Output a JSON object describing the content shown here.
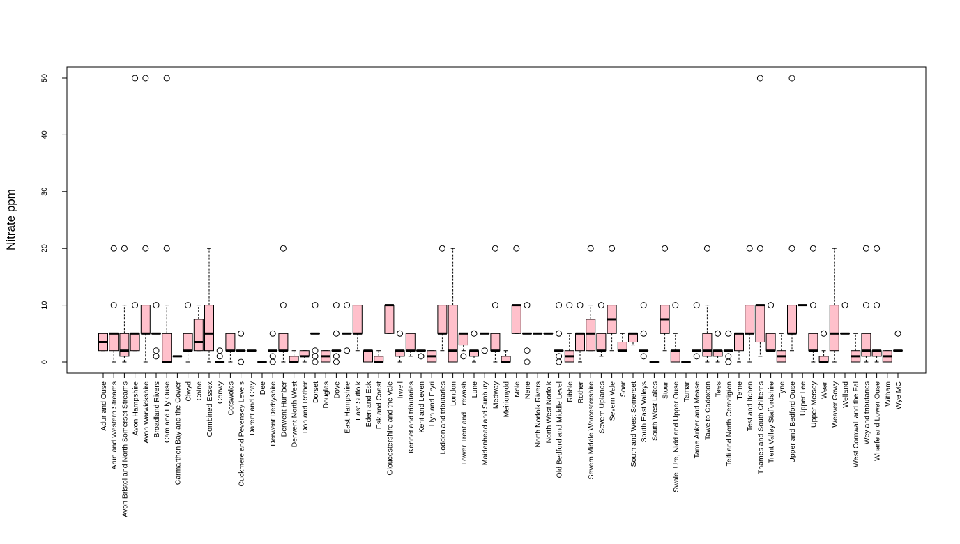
{
  "chart_data": {
    "type": "box",
    "title": "",
    "xlabel": "",
    "ylabel": "Nitrate ppm",
    "ylim": [
      -2,
      52
    ],
    "yticks": [
      0,
      10,
      20,
      30,
      40,
      50
    ],
    "colors": {
      "box_fill": "#ffc0cb",
      "stroke": "#000000"
    },
    "categories": [
      "Adur and Ouse",
      "Arun and Western Streams",
      "Avon Bristol and North Somerset Streams",
      "Avon Hampshire",
      "Avon Warwickshire",
      "Broadland Rivers",
      "Cam and Ely Ouse",
      "Carmarthen Bay and the Gower",
      "Clwyd",
      "Colne",
      "Combined Essex",
      "Conwy",
      "Cotswolds",
      "Cuckmere and Pevensey Levels",
      "Darent and Cray",
      "Dee",
      "Derwent Derbyshire",
      "Derwent Humber",
      "Derwent North West",
      "Don and Rother",
      "Dorset",
      "Douglas",
      "Dove",
      "East Hampshire",
      "East Suffolk",
      "Eden and Esk",
      "Esk and Coast",
      "Gloucestershire and the Vale",
      "Irwell",
      "Kennet and tributaries",
      "Kent and Leven",
      "Llyn and Eryri",
      "Loddon and tributaries",
      "London",
      "Lower Trent and Erewash",
      "Lune",
      "Maidenhead and Sunbury",
      "Medway",
      "Meirionydd",
      "Mole",
      "Nene",
      "North Norfolk Rivers",
      "North West Norfolk",
      "Old Bedford and Middle Level",
      "Ribble",
      "Rother",
      "Severn Middle Worcestershire",
      "Severn Uplands",
      "Severn Vale",
      "Soar",
      "South and West Somerset",
      "South East Valleys",
      "South West Lakes",
      "Stour",
      "Swale, Ure, Nidd and Upper Ouse",
      "Tamar",
      "Tame Anker and Mease",
      "Tawe to Cadoxton",
      "Tees",
      "Teifi and North Ceredigion",
      "Teme",
      "Test and Itchen",
      "Thames and South Chilterns",
      "Trent Valley Staffordshire",
      "Tyne",
      "Upper and Bedford Ouse",
      "Upper Lee",
      "Upper Mersey",
      "Wear",
      "Weaver Gowy",
      "Welland",
      "West Cornwall and the Fal",
      "Wey and tributaries",
      "Wharfe and Lower Ouse",
      "Witham",
      "Wye MC"
    ],
    "boxes": [
      {
        "min": 2,
        "q1": 2,
        "median": 3.5,
        "q3": 5,
        "max": 5,
        "outliers": []
      },
      {
        "min": 0,
        "q1": 2,
        "median": 5,
        "q3": 5,
        "max": 5,
        "outliers": [
          10,
          20
        ]
      },
      {
        "min": 0,
        "q1": 1,
        "median": 2,
        "q3": 5,
        "max": 10,
        "outliers": [
          20
        ]
      },
      {
        "min": 2,
        "q1": 2,
        "median": 5,
        "q3": 5,
        "max": 5,
        "outliers": [
          10,
          50
        ]
      },
      {
        "min": 0,
        "q1": 5,
        "median": 5,
        "q3": 10,
        "max": 10,
        "outliers": [
          20,
          50
        ]
      },
      {
        "min": 5,
        "q1": 5,
        "median": 5,
        "q3": 5,
        "max": 5,
        "outliers": [
          1,
          2,
          10
        ]
      },
      {
        "min": 0,
        "q1": 0,
        "median": 0,
        "q3": 5,
        "max": 10,
        "outliers": [
          20,
          50
        ]
      },
      {
        "min": 1,
        "q1": 1,
        "median": 1,
        "q3": 1,
        "max": 1,
        "outliers": []
      },
      {
        "min": 0,
        "q1": 2,
        "median": 2,
        "q3": 5,
        "max": 5,
        "outliers": [
          10
        ]
      },
      {
        "min": 2,
        "q1": 2,
        "median": 3.5,
        "q3": 7.5,
        "max": 10,
        "outliers": []
      },
      {
        "min": 0,
        "q1": 2,
        "median": 5,
        "q3": 10,
        "max": 20,
        "outliers": []
      },
      {
        "min": 0,
        "q1": 0,
        "median": 0,
        "q3": 0,
        "max": 0,
        "outliers": [
          1,
          2
        ]
      },
      {
        "min": 0,
        "q1": 2,
        "median": 2,
        "q3": 5,
        "max": 5,
        "outliers": []
      },
      {
        "min": 2,
        "q1": 2,
        "median": 2,
        "q3": 2,
        "max": 2,
        "outliers": [
          0,
          5
        ]
      },
      {
        "min": 2,
        "q1": 2,
        "median": 2,
        "q3": 2,
        "max": 2,
        "outliers": []
      },
      {
        "min": 0,
        "q1": 0,
        "median": 0,
        "q3": 0,
        "max": 0,
        "outliers": []
      },
      {
        "min": 2,
        "q1": 2,
        "median": 2,
        "q3": 2,
        "max": 2,
        "outliers": [
          0,
          1,
          5
        ]
      },
      {
        "min": 0,
        "q1": 2,
        "median": 2,
        "q3": 5,
        "max": 5,
        "outliers": [
          10,
          20
        ]
      },
      {
        "min": 0,
        "q1": 0,
        "median": 0,
        "q3": 1,
        "max": 2,
        "outliers": []
      },
      {
        "min": 0,
        "q1": 1,
        "median": 1,
        "q3": 2,
        "max": 2,
        "outliers": []
      },
      {
        "min": 5,
        "q1": 5,
        "median": 5,
        "q3": 5,
        "max": 5,
        "outliers": [
          0,
          1,
          2,
          10
        ]
      },
      {
        "min": 0,
        "q1": 0,
        "median": 1,
        "q3": 2,
        "max": 2,
        "outliers": []
      },
      {
        "min": 2,
        "q1": 2,
        "median": 2,
        "q3": 2,
        "max": 2,
        "outliers": [
          0,
          1,
          5,
          10
        ]
      },
      {
        "min": 5,
        "q1": 5,
        "median": 5,
        "q3": 5,
        "max": 5,
        "outliers": [
          2,
          10
        ]
      },
      {
        "min": 2,
        "q1": 5,
        "median": 5,
        "q3": 10,
        "max": 10,
        "outliers": []
      },
      {
        "min": 0,
        "q1": 0,
        "median": 2,
        "q3": 2,
        "max": 2,
        "outliers": []
      },
      {
        "min": 0,
        "q1": 0,
        "median": 0,
        "q3": 1,
        "max": 2,
        "outliers": []
      },
      {
        "min": 5,
        "q1": 5,
        "median": 10,
        "q3": 10,
        "max": 10,
        "outliers": []
      },
      {
        "min": 0,
        "q1": 1,
        "median": 2,
        "q3": 2,
        "max": 2,
        "outliers": [
          5
        ]
      },
      {
        "min": 1,
        "q1": 2,
        "median": 2,
        "q3": 5,
        "max": 5,
        "outliers": []
      },
      {
        "min": 2,
        "q1": 2,
        "median": 2,
        "q3": 2,
        "max": 2,
        "outliers": [
          1
        ]
      },
      {
        "min": 0,
        "q1": 0,
        "median": 1,
        "q3": 2,
        "max": 2,
        "outliers": []
      },
      {
        "min": 2,
        "q1": 5,
        "median": 5,
        "q3": 10,
        "max": 10,
        "outliers": [
          20
        ]
      },
      {
        "min": 0,
        "q1": 0,
        "median": 2,
        "q3": 10,
        "max": 20,
        "outliers": []
      },
      {
        "min": 2,
        "q1": 3,
        "median": 5,
        "q3": 5,
        "max": 5,
        "outliers": [
          1
        ]
      },
      {
        "min": 0,
        "q1": 1,
        "median": 2,
        "q3": 2,
        "max": 2,
        "outliers": [
          5
        ]
      },
      {
        "min": 5,
        "q1": 5,
        "median": 5,
        "q3": 5,
        "max": 5,
        "outliers": [
          2
        ]
      },
      {
        "min": 0,
        "q1": 2,
        "median": 2,
        "q3": 5,
        "max": 5,
        "outliers": [
          10,
          20
        ]
      },
      {
        "min": 0,
        "q1": 0,
        "median": 0,
        "q3": 1,
        "max": 2,
        "outliers": []
      },
      {
        "min": 5,
        "q1": 5,
        "median": 10,
        "q3": 10,
        "max": 10,
        "outliers": [
          20
        ]
      },
      {
        "min": 5,
        "q1": 5,
        "median": 5,
        "q3": 5,
        "max": 5,
        "outliers": [
          0,
          2,
          10
        ]
      },
      {
        "min": 5,
        "q1": 5,
        "median": 5,
        "q3": 5,
        "max": 5,
        "outliers": []
      },
      {
        "min": 5,
        "q1": 5,
        "median": 5,
        "q3": 5,
        "max": 5,
        "outliers": []
      },
      {
        "min": 2,
        "q1": 2,
        "median": 2,
        "q3": 2,
        "max": 2,
        "outliers": [
          0,
          1,
          5,
          10
        ]
      },
      {
        "min": 0,
        "q1": 0,
        "median": 1,
        "q3": 2,
        "max": 5,
        "outliers": [
          10
        ]
      },
      {
        "min": 0,
        "q1": 2,
        "median": 5,
        "q3": 5,
        "max": 5,
        "outliers": [
          10
        ]
      },
      {
        "min": 2,
        "q1": 2,
        "median": 5,
        "q3": 7.5,
        "max": 10,
        "outliers": [
          20
        ]
      },
      {
        "min": 1,
        "q1": 2,
        "median": 2,
        "q3": 5,
        "max": 5,
        "outliers": [
          10
        ]
      },
      {
        "min": 2,
        "q1": 5,
        "median": 7.5,
        "q3": 10,
        "max": 10,
        "outliers": [
          20
        ]
      },
      {
        "min": 2,
        "q1": 2,
        "median": 2,
        "q3": 3.5,
        "max": 5,
        "outliers": []
      },
      {
        "min": 3,
        "q1": 3.5,
        "median": 5,
        "q3": 5,
        "max": 5,
        "outliers": []
      },
      {
        "min": 2,
        "q1": 2,
        "median": 2,
        "q3": 2,
        "max": 2,
        "outliers": [
          1,
          5,
          10
        ]
      },
      {
        "min": 0,
        "q1": 0,
        "median": 0,
        "q3": 0,
        "max": 0,
        "outliers": []
      },
      {
        "min": 2,
        "q1": 5,
        "median": 7.5,
        "q3": 10,
        "max": 10,
        "outliers": [
          20
        ]
      },
      {
        "min": 0,
        "q1": 0,
        "median": 2,
        "q3": 2,
        "max": 5,
        "outliers": [
          10
        ]
      },
      {
        "min": 0,
        "q1": 0,
        "median": 0,
        "q3": 0,
        "max": 0,
        "outliers": []
      },
      {
        "min": 2,
        "q1": 2,
        "median": 2,
        "q3": 2,
        "max": 2,
        "outliers": [
          1,
          10
        ]
      },
      {
        "min": 0,
        "q1": 1,
        "median": 2,
        "q3": 5,
        "max": 10,
        "outliers": [
          20
        ]
      },
      {
        "min": 0,
        "q1": 1,
        "median": 2,
        "q3": 2,
        "max": 2,
        "outliers": [
          5
        ]
      },
      {
        "min": 2,
        "q1": 2,
        "median": 2,
        "q3": 2,
        "max": 2,
        "outliers": [
          0,
          1,
          5
        ]
      },
      {
        "min": 0,
        "q1": 2,
        "median": 5,
        "q3": 5,
        "max": 5,
        "outliers": []
      },
      {
        "min": 0,
        "q1": 5,
        "median": 5,
        "q3": 10,
        "max": 10,
        "outliers": [
          20
        ]
      },
      {
        "min": 1,
        "q1": 3.5,
        "median": 10,
        "q3": 10,
        "max": 10,
        "outliers": [
          20,
          50
        ]
      },
      {
        "min": 2,
        "q1": 2,
        "median": 2,
        "q3": 5,
        "max": 5,
        "outliers": [
          10
        ]
      },
      {
        "min": 0,
        "q1": 0,
        "median": 1,
        "q3": 2,
        "max": 5,
        "outliers": []
      },
      {
        "min": 2,
        "q1": 5,
        "median": 5,
        "q3": 10,
        "max": 10,
        "outliers": [
          20,
          50
        ]
      },
      {
        "min": 10,
        "q1": 10,
        "median": 10,
        "q3": 10,
        "max": 10,
        "outliers": []
      },
      {
        "min": 0,
        "q1": 2,
        "median": 2,
        "q3": 5,
        "max": 5,
        "outliers": [
          10,
          20
        ]
      },
      {
        "min": 0,
        "q1": 0,
        "median": 0,
        "q3": 1,
        "max": 2,
        "outliers": [
          5
        ]
      },
      {
        "min": 0,
        "q1": 2,
        "median": 5,
        "q3": 10,
        "max": 20,
        "outliers": []
      },
      {
        "min": 5,
        "q1": 5,
        "median": 5,
        "q3": 5,
        "max": 5,
        "outliers": [
          10
        ]
      },
      {
        "min": 0,
        "q1": 0,
        "median": 1,
        "q3": 2,
        "max": 5,
        "outliers": []
      },
      {
        "min": 0,
        "q1": 1,
        "median": 2,
        "q3": 5,
        "max": 5,
        "outliers": [
          10,
          20
        ]
      },
      {
        "min": 0,
        "q1": 1,
        "median": 2,
        "q3": 2,
        "max": 2,
        "outliers": [
          10,
          20
        ]
      },
      {
        "min": 0,
        "q1": 0,
        "median": 1,
        "q3": 2,
        "max": 2,
        "outliers": []
      },
      {
        "min": 2,
        "q1": 2,
        "median": 2,
        "q3": 2,
        "max": 2,
        "outliers": [
          5
        ]
      }
    ]
  }
}
